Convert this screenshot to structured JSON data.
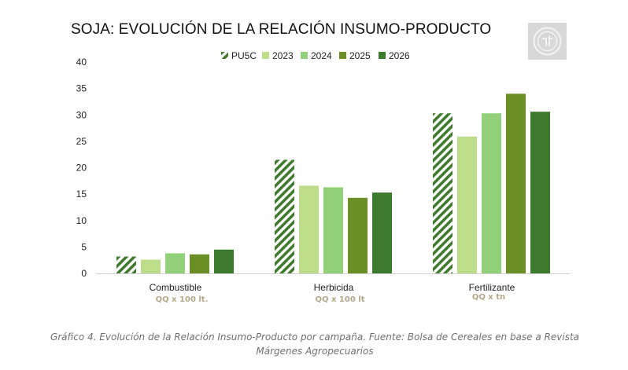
{
  "chart_data": {
    "type": "bar",
    "title": "SOJA: EVOLUCIÓN DE LA RELACIÓN INSUMO-PRODUCTO",
    "categories": [
      "Combustible",
      "Herbicida",
      "Fertilizante"
    ],
    "category_units": [
      "QQ x 100 lt.",
      "QQ x 100 lt",
      "QQ x tn"
    ],
    "series": [
      {
        "name": "PU5C",
        "values": [
          3.2,
          21.5,
          30.3
        ],
        "color": "#3f7a2e",
        "pattern": "diagonal-stripes"
      },
      {
        "name": "2023",
        "values": [
          2.6,
          16.6,
          25.9
        ],
        "color": "#bddd8a"
      },
      {
        "name": "2024",
        "values": [
          3.8,
          16.3,
          30.3
        ],
        "color": "#92d07a"
      },
      {
        "name": "2025",
        "values": [
          3.6,
          14.3,
          34.0
        ],
        "color": "#6b8f24"
      },
      {
        "name": "2026",
        "values": [
          4.5,
          15.3,
          30.6
        ],
        "color": "#3c7a2e"
      }
    ],
    "ylim": [
      0,
      40
    ],
    "yticks": [
      0,
      5,
      10,
      15,
      20,
      25,
      30,
      35,
      40
    ],
    "xlabel": "",
    "ylabel": "",
    "grid": false,
    "legend_position": "top-center"
  },
  "colors": {
    "unit_label": "#b3a78a",
    "caption": "#6f6f6f",
    "axis": "#d0d0d0"
  },
  "logo": {
    "name": "seal-logo"
  },
  "caption": "Gráfico 4. Evolución de la Relación Insumo-Producto por campaña. Fuente: Bolsa de Cereales en base a Revista Márgenes Agropecuarios"
}
